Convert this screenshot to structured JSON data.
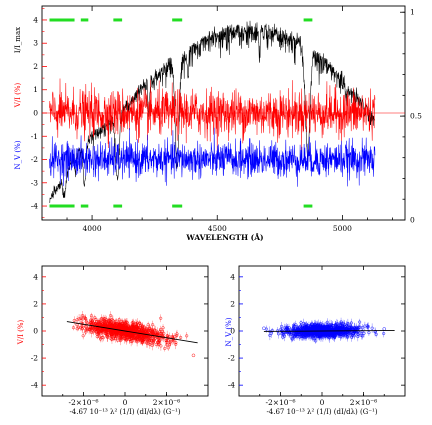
{
  "chart_data": [
    {
      "type": "line",
      "panel": "spectrum",
      "xlabel": "WAVELENGTH (Å)",
      "x_ticks": [
        "4000",
        "4500",
        "5000"
      ],
      "xlim": [
        3800,
        5250
      ],
      "ylabel_red": "V/I (%)",
      "ylabel_blue": "N_V (%)",
      "ylabel_black": "I/I_max",
      "ylim": [
        -4.6,
        4.6
      ],
      "y_ticks": [
        "-4",
        "-3",
        "-2",
        "-1",
        "0",
        "1",
        "2",
        "3",
        "4"
      ],
      "y_tick_values": [
        -4,
        -3,
        -2,
        -1,
        0,
        1,
        2,
        3,
        4
      ],
      "right_ticks": [
        "0",
        "0.5",
        "1"
      ],
      "right_tick_values": [
        0,
        0.5,
        1
      ],
      "right_lim": [
        0,
        1.03
      ],
      "series": [
        {
          "key": "I",
          "color": "#000000",
          "offset": 0,
          "noise": 0.012,
          "continuum": [
            [
              3830,
              0.1
            ],
            [
              3880,
              0.2
            ],
            [
              3930,
              0.32
            ],
            [
              3980,
              0.4
            ],
            [
              4050,
              0.46
            ],
            [
              4150,
              0.58
            ],
            [
              4200,
              0.66
            ],
            [
              4300,
              0.76
            ],
            [
              4380,
              0.83
            ],
            [
              4450,
              0.89
            ],
            [
              4550,
              0.93
            ],
            [
              4650,
              0.95
            ],
            [
              4750,
              0.92
            ],
            [
              4850,
              0.86
            ],
            [
              4950,
              0.76
            ],
            [
              5050,
              0.62
            ],
            [
              5130,
              0.5
            ]
          ],
          "lines": [
            [
              3889,
              0.45,
              6
            ],
            [
              3970,
              0.55,
              6
            ],
            [
              4101,
              0.62,
              7
            ],
            [
              4340,
              0.66,
              8
            ],
            [
              4861,
              0.62,
              9
            ],
            [
              3934,
              0.3,
              3
            ],
            [
              4227,
              0.25,
              3
            ],
            [
              4383,
              0.15,
              3
            ],
            [
              4668,
              0.1,
              3
            ],
            [
              5015,
              0.08,
              3
            ]
          ]
        },
        {
          "key": "V",
          "color": "#ff0000",
          "offset": 0,
          "noise": 0.5
        },
        {
          "key": "N",
          "color": "#0000ff",
          "offset": -2,
          "noise": 0.38
        }
      ],
      "masked_regions": [
        [
          3830,
          3930
        ],
        [
          3955,
          3985
        ],
        [
          4085,
          4120
        ],
        [
          4320,
          4360
        ],
        [
          4845,
          4880
        ]
      ],
      "mask_levels": [
        4,
        -4
      ],
      "xrange_data": [
        3830,
        5130
      ],
      "zero_line_color": "#ff0000"
    },
    {
      "type": "scatter",
      "panel": "regression-V",
      "color": "#ff0000",
      "xlabel": "-4.67 10⁻¹³ λ² (1/I) (dI/dλ) (G⁻¹)",
      "ylabel": "V/I (%)",
      "xlim": [
        -4e-06,
        4e-06
      ],
      "ylim": [
        -4.8,
        4.8
      ],
      "x_ticks": [
        "-2×10⁻⁶",
        "0",
        "2×10⁻⁶"
      ],
      "x_tick_values": [
        -2e-06,
        0,
        2e-06
      ],
      "y_ticks": [
        "-4",
        "-2",
        "0",
        "2",
        "4"
      ],
      "y_tick_values": [
        -4,
        -2,
        0,
        2,
        4
      ],
      "fit_slope_per_unit": -250000,
      "fit_range": [
        -2.8e-06,
        3.5e-06
      ],
      "point_spread": 0.32,
      "point_count": 900,
      "outliers": [
        [
          3.3e-06,
          -1.8
        ]
      ]
    },
    {
      "type": "scatter",
      "panel": "regression-N",
      "color": "#0000ff",
      "xlabel": "-4.67 10⁻¹³ λ² (1/I) (dI/dλ) (G⁻¹)",
      "ylabel": "N_V (%)",
      "xlim": [
        -4e-06,
        4e-06
      ],
      "ylim": [
        -4.8,
        4.8
      ],
      "x_ticks": [
        "-2×10⁻⁶",
        "0",
        "2×10⁻⁶"
      ],
      "x_tick_values": [
        -2e-06,
        0,
        2e-06
      ],
      "y_ticks": [
        "-4",
        "-2",
        "0",
        "2",
        "4"
      ],
      "y_tick_values": [
        -4,
        -2,
        0,
        2,
        4
      ],
      "fit_slope_per_unit": 12000,
      "fit_range": [
        -2.8e-06,
        3.5e-06
      ],
      "point_spread": 0.22,
      "point_count": 900,
      "outliers": [
        [
          -2.8e-06,
          0.2
        ],
        [
          3e-06,
          0.15
        ]
      ]
    }
  ]
}
